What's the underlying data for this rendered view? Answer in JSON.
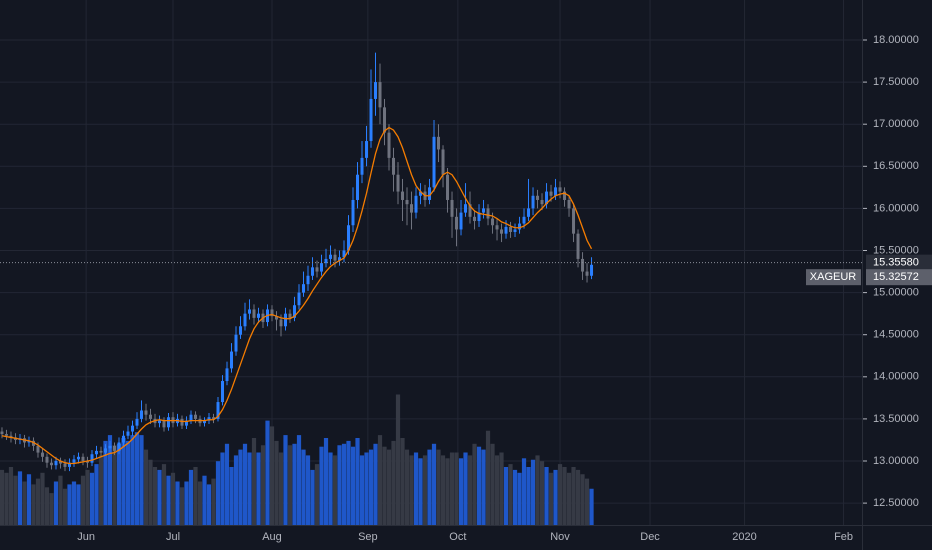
{
  "chart_data": {
    "type": "candlestick",
    "symbol": "XAGEUR",
    "up_color": "#2a7fff",
    "down_color": "#6f737f",
    "volume_up_color": "#1f57c9",
    "volume_down_color": "#363a45",
    "ma_color": "#f57c00",
    "grid": true,
    "xlim": [
      -0.44,
      191.1
    ],
    "xticks": [
      {
        "value": 18.7,
        "label": "Jun"
      },
      {
        "value": 38,
        "label": "Jul"
      },
      {
        "value": 60,
        "label": "Aug"
      },
      {
        "value": 81.3,
        "label": "Sep"
      },
      {
        "value": 101.3,
        "label": "Oct"
      },
      {
        "value": 124,
        "label": "Nov"
      },
      {
        "value": 144,
        "label": "Dec"
      },
      {
        "value": 165,
        "label": "2020"
      },
      {
        "value": 187,
        "label": "Feb"
      }
    ],
    "ylim": [
      12.24,
      18.475
    ],
    "yticks": [
      {
        "value": 12.5,
        "label": "12.50000"
      },
      {
        "value": 13,
        "label": "13.00000"
      },
      {
        "value": 13.5,
        "label": "13.50000"
      },
      {
        "value": 14,
        "label": "14.00000"
      },
      {
        "value": 14.5,
        "label": "14.50000"
      },
      {
        "value": 15,
        "label": "15.00000"
      },
      {
        "value": 15.5,
        "label": "15.50000"
      },
      {
        "value": 16,
        "label": "16.00000"
      },
      {
        "value": 16.5,
        "label": "16.50000"
      },
      {
        "value": 17,
        "label": "17.00000"
      },
      {
        "value": 17.5,
        "label": "17.50000"
      },
      {
        "value": 18,
        "label": "18.00000"
      }
    ],
    "price_line": {
      "value": 15.3558,
      "label": "15.35580"
    },
    "symbol_price": {
      "value": 15.32572,
      "label": "15.32572"
    },
    "vlim": [
      0,
      100
    ],
    "open": [
      13.35,
      13.32,
      13.3,
      13.28,
      13.25,
      13.27,
      13.22,
      13.24,
      13.18,
      13.1,
      13.05,
      12.98,
      12.95,
      13.0,
      12.97,
      12.93,
      12.98,
      13.02,
      13.05,
      13.0,
      12.98,
      13.08,
      13.12,
      13.1,
      13.15,
      13.18,
      13.12,
      13.22,
      13.3,
      13.35,
      13.42,
      13.5,
      13.6,
      13.55,
      13.5,
      13.45,
      13.48,
      13.4,
      13.52,
      13.45,
      13.5,
      13.42,
      13.48,
      13.55,
      13.5,
      13.45,
      13.48,
      13.52,
      13.5,
      13.7,
      13.95,
      14.1,
      14.3,
      14.5,
      14.6,
      14.75,
      14.8,
      14.7,
      14.75,
      14.65,
      14.8,
      14.72,
      14.68,
      14.6,
      14.75,
      14.7,
      14.85,
      15.0,
      15.1,
      15.2,
      15.3,
      15.25,
      15.35,
      15.4,
      15.45,
      15.38,
      15.42,
      15.5,
      15.8,
      16.1,
      16.4,
      16.6,
      16.8,
      17.3,
      17.5,
      17.2,
      16.9,
      16.6,
      16.4,
      16.2,
      16.1,
      16.05,
      15.95,
      16.15,
      16.2,
      16.1,
      16.25,
      16.85,
      16.7,
      16.4,
      16.1,
      15.9,
      15.75,
      15.95,
      16.05,
      15.9,
      15.85,
      15.95,
      16.0,
      15.88,
      15.8,
      15.75,
      15.7,
      15.78,
      15.72,
      15.75,
      15.82,
      15.9,
      16.0,
      16.15,
      16.1,
      16.05,
      16.2,
      16.15,
      16.25,
      16.2,
      16.1,
      16.0,
      15.7,
      15.4,
      15.25,
      15.2
    ],
    "high": [
      13.4,
      13.37,
      13.35,
      13.33,
      13.32,
      13.31,
      13.29,
      13.28,
      13.22,
      13.15,
      13.09,
      13.03,
      13.05,
      13.04,
      13.02,
      13.03,
      13.07,
      13.1,
      13.09,
      13.05,
      13.13,
      13.18,
      13.17,
      13.2,
      13.24,
      13.22,
      13.28,
      13.36,
      13.42,
      13.48,
      13.58,
      13.72,
      13.68,
      13.62,
      13.56,
      13.54,
      13.52,
      13.57,
      13.58,
      13.56,
      13.54,
      13.53,
      13.6,
      13.59,
      13.54,
      13.52,
      13.57,
      13.56,
      13.76,
      14.02,
      14.18,
      14.4,
      14.6,
      14.72,
      14.88,
      14.92,
      14.86,
      14.82,
      14.8,
      14.86,
      14.85,
      14.78,
      14.74,
      14.82,
      14.8,
      14.95,
      15.1,
      15.25,
      15.32,
      15.42,
      15.38,
      15.45,
      15.52,
      15.56,
      15.52,
      15.5,
      15.62,
      15.92,
      16.25,
      16.55,
      16.8,
      16.98,
      17.65,
      17.85,
      17.72,
      17.3,
      17.0,
      16.72,
      16.55,
      16.35,
      16.25,
      16.2,
      16.25,
      16.3,
      16.28,
      16.35,
      17.05,
      17.0,
      16.75,
      16.48,
      16.2,
      16.0,
      16.1,
      16.3,
      16.2,
      15.98,
      16.05,
      16.1,
      16.05,
      15.95,
      15.88,
      15.82,
      15.86,
      15.84,
      15.82,
      15.9,
      16.0,
      16.35,
      16.25,
      16.22,
      16.18,
      16.3,
      16.28,
      16.35,
      16.32,
      16.25,
      16.15,
      16.05,
      15.75,
      15.48,
      15.35,
      15.42
    ],
    "low": [
      13.27,
      13.25,
      13.22,
      13.2,
      13.2,
      13.16,
      13.17,
      13.12,
      13.04,
      12.99,
      12.92,
      12.9,
      12.9,
      12.91,
      12.88,
      12.88,
      12.93,
      12.97,
      12.95,
      12.92,
      12.94,
      13.03,
      13.05,
      13.06,
      13.1,
      13.07,
      13.08,
      13.18,
      13.26,
      13.3,
      13.38,
      13.46,
      13.48,
      13.44,
      13.4,
      13.4,
      13.35,
      13.36,
      13.4,
      13.41,
      13.38,
      13.38,
      13.44,
      13.45,
      13.41,
      13.41,
      13.44,
      13.45,
      13.47,
      13.66,
      13.9,
      14.05,
      14.25,
      14.45,
      14.55,
      14.68,
      14.62,
      14.64,
      14.58,
      14.6,
      14.66,
      14.55,
      14.48,
      14.55,
      14.64,
      14.66,
      14.8,
      14.95,
      15.02,
      15.15,
      15.18,
      15.2,
      15.3,
      15.33,
      15.3,
      15.32,
      15.36,
      15.45,
      15.72,
      16.0,
      16.3,
      16.5,
      16.72,
      17.1,
      17.0,
      16.75,
      16.45,
      16.2,
      16.05,
      15.85,
      15.8,
      15.75,
      15.88,
      16.05,
      16.02,
      16.05,
      16.2,
      16.55,
      16.25,
      15.95,
      15.65,
      15.55,
      15.68,
      15.9,
      15.82,
      15.75,
      15.78,
      15.88,
      15.8,
      15.7,
      15.62,
      15.6,
      15.64,
      15.65,
      15.66,
      15.7,
      15.76,
      15.85,
      15.92,
      16.0,
      15.98,
      16.0,
      16.08,
      16.1,
      16.12,
      16.02,
      15.9,
      15.6,
      15.3,
      15.15,
      15.12,
      15.16
    ],
    "close": [
      13.32,
      13.3,
      13.28,
      13.25,
      13.27,
      13.22,
      13.24,
      13.18,
      13.1,
      13.05,
      12.98,
      12.95,
      13.0,
      12.97,
      12.93,
      12.98,
      13.02,
      13.05,
      13.0,
      12.98,
      13.08,
      13.12,
      13.1,
      13.15,
      13.18,
      13.12,
      13.22,
      13.3,
      13.35,
      13.42,
      13.5,
      13.6,
      13.55,
      13.5,
      13.45,
      13.48,
      13.4,
      13.52,
      13.45,
      13.5,
      13.42,
      13.48,
      13.55,
      13.5,
      13.45,
      13.48,
      13.52,
      13.5,
      13.7,
      13.95,
      14.1,
      14.3,
      14.5,
      14.6,
      14.75,
      14.8,
      14.7,
      14.75,
      14.65,
      14.8,
      14.72,
      14.68,
      14.6,
      14.75,
      14.7,
      14.85,
      15.0,
      15.1,
      15.2,
      15.3,
      15.25,
      15.35,
      15.4,
      15.45,
      15.38,
      15.42,
      15.5,
      15.8,
      16.1,
      16.4,
      16.6,
      16.8,
      17.3,
      17.5,
      17.2,
      16.9,
      16.6,
      16.4,
      16.2,
      16.1,
      16.05,
      15.95,
      16.15,
      16.2,
      16.1,
      16.25,
      16.85,
      16.7,
      16.4,
      16.1,
      15.9,
      15.75,
      15.95,
      16.05,
      15.9,
      15.85,
      15.95,
      16.0,
      15.88,
      15.8,
      15.75,
      15.7,
      15.78,
      15.72,
      15.75,
      15.82,
      15.9,
      16.0,
      16.15,
      16.1,
      16.05,
      16.2,
      16.15,
      16.25,
      16.2,
      16.1,
      16.0,
      15.7,
      15.4,
      15.25,
      15.2,
      15.33
    ],
    "volume": [
      38,
      36,
      40,
      34,
      37,
      30,
      35,
      28,
      32,
      36,
      26,
      22,
      30,
      34,
      25,
      28,
      30,
      28,
      34,
      38,
      36,
      42,
      48,
      58,
      62,
      55,
      56,
      60,
      58,
      62,
      64,
      62,
      52,
      45,
      40,
      38,
      42,
      34,
      36,
      30,
      26,
      30,
      38,
      40,
      30,
      34,
      28,
      32,
      44,
      50,
      56,
      40,
      48,
      52,
      56,
      50,
      60,
      50,
      55,
      72,
      68,
      58,
      50,
      62,
      55,
      56,
      62,
      52,
      48,
      38,
      42,
      54,
      60,
      50,
      48,
      55,
      56,
      58,
      54,
      60,
      48,
      50,
      52,
      56,
      62,
      54,
      52,
      58,
      90,
      60,
      52,
      48,
      50,
      46,
      48,
      52,
      56,
      52,
      48,
      46,
      50,
      50,
      46,
      50,
      48,
      56,
      54,
      52,
      65,
      56,
      48,
      50,
      40,
      42,
      38,
      36,
      46,
      40,
      45,
      48,
      44,
      40,
      36,
      38,
      42,
      40,
      36,
      40,
      38,
      35,
      32,
      25
    ],
    "ma": [
      13.3,
      13.29,
      13.28,
      13.27,
      13.26,
      13.25,
      13.24,
      13.22,
      13.19,
      13.15,
      13.11,
      13.07,
      13.03,
      13.0,
      12.98,
      12.97,
      12.97,
      12.98,
      12.99,
      13.0,
      13.01,
      13.03,
      13.05,
      13.07,
      13.09,
      13.1,
      13.13,
      13.17,
      13.21,
      13.26,
      13.32,
      13.38,
      13.43,
      13.46,
      13.48,
      13.49,
      13.48,
      13.48,
      13.48,
      13.48,
      13.47,
      13.47,
      13.48,
      13.48,
      13.48,
      13.48,
      13.49,
      13.49,
      13.53,
      13.61,
      13.72,
      13.85,
      14.0,
      14.15,
      14.3,
      14.45,
      14.57,
      14.65,
      14.7,
      14.73,
      14.74,
      14.72,
      14.7,
      14.69,
      14.69,
      14.72,
      14.78,
      14.85,
      14.93,
      15.02,
      15.1,
      15.18,
      15.25,
      15.31,
      15.35,
      15.38,
      15.41,
      15.5,
      15.62,
      15.78,
      15.97,
      16.18,
      16.42,
      16.65,
      16.82,
      16.92,
      16.96,
      16.93,
      16.85,
      16.72,
      16.56,
      16.4,
      16.27,
      16.2,
      16.15,
      16.15,
      16.22,
      16.32,
      16.4,
      16.43,
      16.4,
      16.32,
      16.22,
      16.12,
      16.03,
      15.97,
      15.94,
      15.93,
      15.92,
      15.91,
      15.88,
      15.84,
      15.82,
      15.79,
      15.77,
      15.77,
      15.79,
      15.83,
      15.89,
      15.95,
      16.0,
      16.06,
      16.11,
      16.15,
      16.17,
      16.18,
      16.15,
      16.05,
      15.92,
      15.77,
      15.62,
      15.52
    ]
  }
}
